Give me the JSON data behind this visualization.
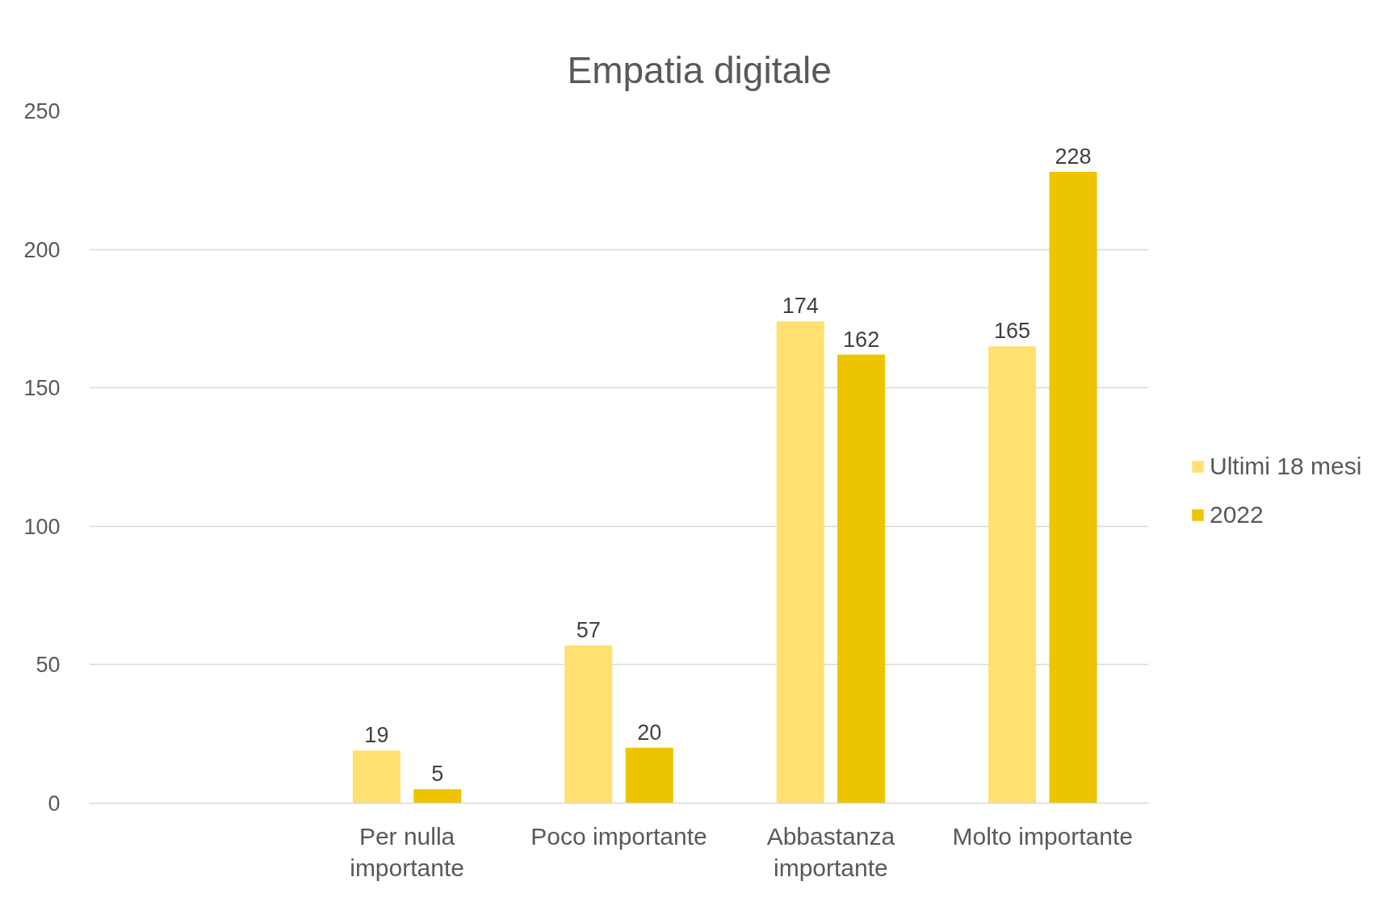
{
  "chart_data": {
    "type": "bar",
    "title": "Empatia digitale",
    "categories": [
      null,
      "Per nulla importante",
      "Poco importante",
      "Abbastanza importante",
      "Molto importante"
    ],
    "series": [
      {
        "name": "Ultimi 18 mesi",
        "color": "#ffe070",
        "values": [
          null,
          19,
          57,
          174,
          165
        ]
      },
      {
        "name": "2022",
        "color": "#eec300",
        "values": [
          null,
          5,
          20,
          162,
          228
        ]
      }
    ],
    "ylim": [
      0,
      250
    ],
    "yticks": [
      0,
      50,
      100,
      150,
      200,
      250
    ],
    "grid": "y",
    "legend": "right",
    "data_labels": true
  }
}
